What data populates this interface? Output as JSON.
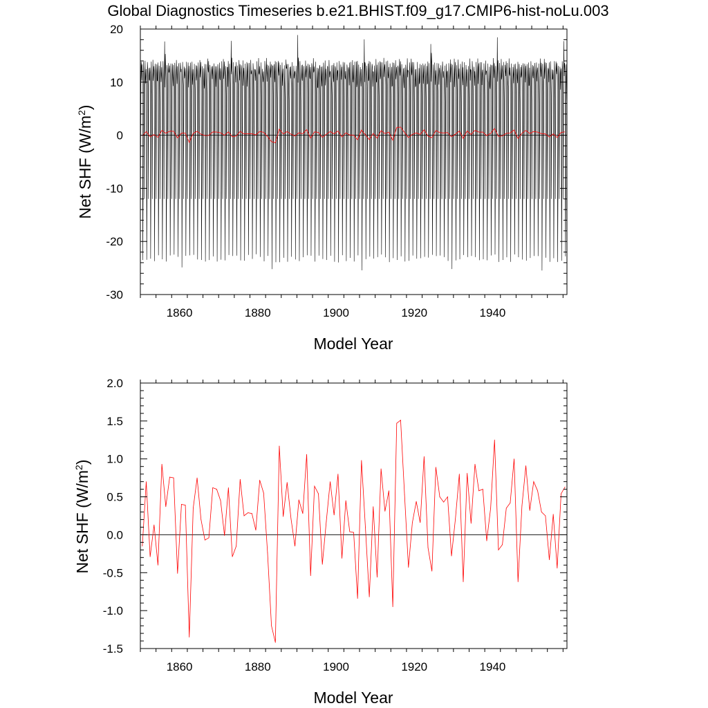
{
  "title": "Global Diagnostics Timeseries b.e21.BHIST.f09_g17.CMIP6-hist-noLu.003",
  "colors": {
    "monthly": "#000000",
    "annual": "#ff0000",
    "axis": "#000000",
    "zero": "#000000"
  },
  "chart_data": [
    {
      "type": "line",
      "xlabel": "Model Year",
      "ylabel_main": "Net SHF (W/m",
      "ylabel_sup": "2",
      "ylabel_close": ")",
      "xlim": [
        1850,
        1959
      ],
      "ylim": [
        -30,
        20
      ],
      "xticks": [
        1860,
        1880,
        1900,
        1920,
        1940
      ],
      "xtick_labels": [
        "1860",
        "1880",
        "1900",
        "1920",
        "1940"
      ],
      "yticks": [
        -30,
        -20,
        -10,
        0,
        10,
        20
      ],
      "ytick_labels": [
        "-30",
        "-20",
        "-10",
        "0",
        "10",
        "20"
      ],
      "reference_line": 0,
      "monthly_cycle": {
        "typical_max": 13.5,
        "typical_min": -23.2,
        "peak_max": 18.2,
        "peak_min": -25.2
      },
      "series": [
        {
          "kind": "monthly"
        },
        {
          "kind": "annual"
        }
      ]
    },
    {
      "type": "line",
      "xlabel": "Model Year",
      "ylabel_main": "Net SHF (W/m",
      "ylabel_sup": "2",
      "ylabel_close": ")",
      "xlim": [
        1850,
        1959
      ],
      "ylim": [
        -1.5,
        2.0
      ],
      "xticks": [
        1860,
        1880,
        1900,
        1920,
        1940
      ],
      "xtick_labels": [
        "1860",
        "1880",
        "1900",
        "1920",
        "1940"
      ],
      "yticks": [
        -1.5,
        -1.0,
        -0.5,
        0.0,
        0.5,
        1.0,
        1.5,
        2.0
      ],
      "ytick_labels": [
        "-1.5",
        "-1.0",
        "-0.5",
        "0.0",
        "0.5",
        "1.0",
        "1.5",
        "2.0"
      ],
      "reference_line": 0,
      "x_start": 1850.5,
      "series": [
        {
          "kind": "annual",
          "values": [
            -0.15,
            0.7,
            -0.29,
            0.13,
            -0.4,
            0.93,
            0.37,
            0.76,
            0.75,
            -0.51,
            0.4,
            0.39,
            -1.35,
            0.35,
            0.75,
            0.2,
            -0.07,
            -0.04,
            0.62,
            0.6,
            0.45,
            -0.01,
            0.62,
            -0.29,
            -0.15,
            0.73,
            0.25,
            0.29,
            0.28,
            0.06,
            0.72,
            0.55,
            -0.24,
            -1.2,
            -1.42,
            1.17,
            0.24,
            0.69,
            0.21,
            -0.15,
            0.46,
            0.28,
            1.06,
            -0.54,
            0.64,
            0.54,
            -0.39,
            0.17,
            0.7,
            0.26,
            0.8,
            -0.31,
            0.45,
            0.04,
            0.03,
            -0.84,
            0.98,
            0.1,
            -0.82,
            0.37,
            -0.56,
            0.87,
            0.31,
            0.58,
            -0.95,
            1.47,
            1.51,
            0.53,
            -0.43,
            0.16,
            0.44,
            0.16,
            1.03,
            -0.17,
            -0.48,
            0.89,
            0.5,
            0.43,
            0.5,
            -0.28,
            0.21,
            0.8,
            -0.62,
            0.81,
            0.15,
            0.93,
            0.58,
            0.6,
            -0.08,
            0.35,
            1.25,
            -0.2,
            -0.13,
            0.35,
            0.42,
            1.0,
            -0.62,
            0.38,
            0.91,
            0.32,
            0.7,
            0.58,
            0.3,
            0.25,
            -0.33,
            0.27,
            -0.44,
            0.54,
            0.63
          ]
        }
      ]
    }
  ]
}
